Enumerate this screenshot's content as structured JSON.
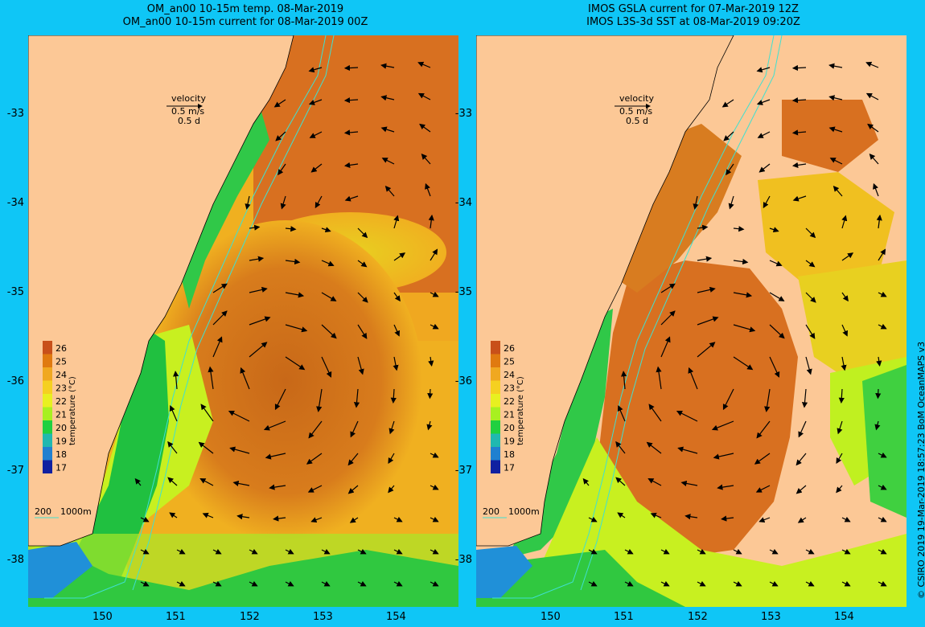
{
  "left_panel": {
    "title_line1": "OM_an00 10-15m temp. 08-Mar-2019",
    "title_line2": "OM_an00 10-15m current for 08-Mar-2019 00Z"
  },
  "right_panel": {
    "title_line1": "IMOS GSLA current for 07-Mar-2019 12Z",
    "title_line2": "IMOS L3S-3d SST at 08-Mar-2019 09:20Z"
  },
  "velocity_legend": {
    "label": "velocity",
    "speed": "0.5 m/s",
    "duration": "0.5 d"
  },
  "depth_legend": {
    "shallow": "200",
    "deep": "1000m"
  },
  "colorbar": {
    "ticks": [
      "26",
      "25",
      "24",
      "23",
      "22",
      "21",
      "20",
      "19",
      "18",
      "17"
    ],
    "label": "temperature (°C)",
    "colors": [
      "#c8501a",
      "#e07a10",
      "#f0a820",
      "#f5d020",
      "#e8f020",
      "#a8f020",
      "#20d040",
      "#20b8b0",
      "#2080d0",
      "#1020a0"
    ]
  },
  "axes": {
    "lat_ticks": [
      "-33",
      "-34",
      "-35",
      "-36",
      "-37",
      "-38"
    ],
    "lon_ticks": [
      "150",
      "151",
      "152",
      "153",
      "154"
    ]
  },
  "credit": "© CSIRO 2019   19-Mar-2019 18:57:23 BoM OceanMAPS v3",
  "colors": {
    "background": "#0fc6f6",
    "land": "#fcc896",
    "warm": "#d87020",
    "mid": "#f0b020",
    "cool": "#c0f020",
    "cold": "#20c040",
    "isobath": "#40e0d0"
  }
}
